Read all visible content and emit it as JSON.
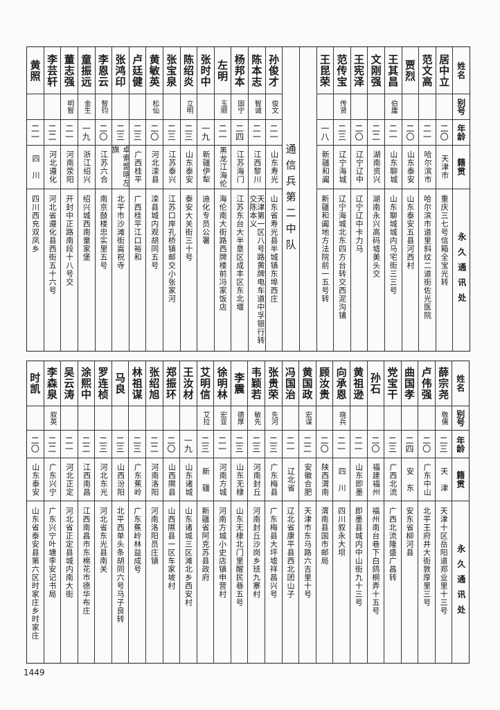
{
  "headers": [
    "姓名",
    "别号",
    "年龄",
    "籍贯",
    "永久通讯处"
  ],
  "top": {
    "group_a": [
      {
        "name": "居中立",
        "alias": "",
        "age": "二〇",
        "origin": "天津市",
        "address": "重庆三七号信箱全宝光转"
      },
      {
        "name": "范文高",
        "alias": "",
        "age": "二一",
        "origin": "哈尔滨市",
        "address": "哈尔滨市道里斜纹二道街佐光医院"
      },
      {
        "name": "贾烈",
        "alias": "",
        "age": "二〇",
        "origin": "山东泰安",
        "address": "山东泰安五县河西村"
      },
      {
        "name": "王其昌",
        "alias": "伯庸",
        "age": "二一",
        "origin": "山东聊城",
        "address": "山东聊城城内马宅街三三号"
      },
      {
        "name": "文刚强",
        "alias": "",
        "age": "二二",
        "origin": "湖南资兴",
        "address": "湖南永兴高码墟美头交"
      },
      {
        "name": "王宪泽",
        "alias": "",
        "age": "二〇",
        "origin": "辽宁辽中",
        "address": "辽宁辽中卡力马"
      },
      {
        "name": "范传宝",
        "alias": "传贤",
        "age": "二三",
        "origin": "辽宁海城",
        "address": "辽宁海城北东四方台转交西泥沟铺"
      },
      {
        "name": "王昆荣",
        "alias": "",
        "age": "一八",
        "origin": "新疆和阗",
        "address": "新疆和阗地方法院前一五号转"
      }
    ],
    "section_label": "通信兵第二中队",
    "group_b": [
      {
        "name": "孙俊才",
        "alias": "俊文",
        "age": "二一",
        "origin": "山东寿光",
        "address": "山东省寿光县半城镇东埠西庄"
      },
      {
        "name": "陈本志",
        "alias": "智诚",
        "age": "二一",
        "origin": "江西黎川",
        "address": "天津第一区八号路黄牌电车道中孚银行转交陈本义"
      },
      {
        "name": "杨邦本",
        "alias": "固宁",
        "age": "二四",
        "origin": "江苏海门",
        "address": "江苏东台大半垦区成丰区东北堰"
      },
      {
        "name": "左明",
        "alias": "玉顺",
        "age": "二一",
        "origin": "黑龙江海伦",
        "address": "海伦南大街路西牌楼前冯家饭店"
      },
      {
        "name": "张时中",
        "alias": "",
        "age": "一九",
        "origin": "新疆伊犁",
        "address": "迪化专员公署"
      },
      {
        "name": "陈绍炎",
        "alias": "立明",
        "age": "二三",
        "origin": "山东泰安",
        "address": "泰安大关街三十号"
      },
      {
        "name": "张宝泉",
        "alias": "",
        "age": "二三",
        "origin": "江苏泰兴",
        "address": "江苏口岸孔桥镇邮交小张家河"
      },
      {
        "name": "黄敏英",
        "alias": "松仙",
        "age": "二〇",
        "origin": "河北滦县",
        "address": "滦县城内观胡同五号"
      },
      {
        "name": "卢廷健",
        "alias": "",
        "age": "二三",
        "origin": "广西桂平",
        "address": "广西桂平江口裕和"
      },
      {
        "name": "张鸿印",
        "alias": "",
        "age": "二三",
        "origin": "卓索盟喀左旗",
        "address": "北平市沙滩街嵩祝寺"
      },
      {
        "name": "李恩云",
        "alias": "智钧",
        "age": "二〇",
        "origin": "江苏六合",
        "address": "南京鼓楼忠实里五号"
      },
      {
        "name": "童振远",
        "alias": "金生",
        "age": "一九",
        "origin": "浙江绍兴",
        "address": "绍兴城西南童家堡"
      },
      {
        "name": "董志强",
        "alias": "明智",
        "age": "二一",
        "origin": "河南荥阳",
        "address": "开封中正路南段十八号交"
      },
      {
        "name": "李芸轩",
        "alias": "",
        "age": "二二",
        "origin": "河北遵化",
        "address": "河北省遵化县西街五十六号"
      },
      {
        "name": "黄照",
        "alias": "",
        "age": "二一",
        "origin": "四　川",
        "address": "四川西充双凤乡"
      }
    ]
  },
  "bottom": [
    {
      "name": "薛宗尧",
      "alias": "敬儒",
      "age": "二三",
      "origin": "天　津",
      "address": "天津十区岳阳道郑业里十三号"
    },
    {
      "name": "卢伟强",
      "alias": "",
      "age": "二〇",
      "origin": "广东中山",
      "address": "北平王府井大街敦厚里三号"
    },
    {
      "name": "曲国孝",
      "alias": "",
      "age": "二四",
      "origin": "安　东",
      "address": "安东省柳河县"
    },
    {
      "name": "党宝干",
      "alias": "",
      "age": "二三",
      "origin": "广西北流",
      "address": "广西北流隆盛广昌转"
    },
    {
      "name": "孙石",
      "alias": "",
      "age": "二〇",
      "origin": "福建福州",
      "address": "福州南台巷下白鸽桐弄十五号"
    },
    {
      "name": "黄祖逊",
      "alias": "",
      "age": "二一",
      "origin": "山东即墨",
      "address": "即墨县城内中山街九十三号"
    },
    {
      "name": "向承恩",
      "alias": "晓兵",
      "age": "二一",
      "origin": "四　川",
      "address": "四川叙永大坝"
    },
    {
      "name": "顾汝贵",
      "alias": "",
      "age": "二〇",
      "origin": "陕西渭南",
      "address": "渭南县国市邮局"
    },
    {
      "name": "黄国政",
      "alias": "宏谋",
      "age": "二二",
      "origin": "安徽合肥",
      "address": "天津市东马路六吉里十号"
    },
    {
      "name": "冯国治",
      "alias": "",
      "age": "二一",
      "origin": "辽北省",
      "address": "辽北省康平县西北团山子"
    },
    {
      "name": "张贵荣",
      "alias": "先河",
      "age": "二三",
      "origin": "广东梅县",
      "address": "广东梅县大坪墟祥昌兴号"
    },
    {
      "name": "韦颖若",
      "alias": "敏先",
      "age": "二三",
      "origin": "河南封丘",
      "address": "河南封丘沙岗乡班九寨村"
    },
    {
      "name": "李震",
      "alias": "德厚",
      "age": "二三",
      "origin": "山东无棣",
      "address": "山东无棣北门里醒民巷五号"
    },
    {
      "name": "徐明林",
      "alias": "宏亚",
      "age": "二一",
      "origin": "河南方城",
      "address": "河南方城小史店镇申营村"
    },
    {
      "name": "艾明信",
      "alias": "艾拉",
      "age": "二三",
      "origin": "新　疆",
      "address": "新疆省阿克苏县政府"
    },
    {
      "name": "王汝材",
      "alias": "",
      "age": "一九",
      "origin": "山东诸城",
      "address": "山东诸城三区滩北乡西安村"
    },
    {
      "name": "郑振环",
      "alias": "",
      "age": "二〇",
      "origin": "山西隰县",
      "address": "山西隰县一区车家坡村"
    },
    {
      "name": "张绍旭",
      "alias": "",
      "age": "二二",
      "origin": "河南洛阳",
      "address": "河南洛阳员庄镇"
    },
    {
      "name": "林祖谋",
      "alias": "",
      "age": "二三",
      "origin": "广东蕉岭",
      "address": "广东蕉岭林益成号"
    },
    {
      "name": "马良",
      "alias": "",
      "age": "二三",
      "origin": "山西汾阳",
      "address": "北平西单头条胡同六号马子良转"
    },
    {
      "name": "罗连桢",
      "alias": "",
      "age": "二三",
      "origin": "河北东光",
      "address": "河北省东光县南关"
    },
    {
      "name": "涂熙中",
      "alias": "",
      "age": "二二",
      "origin": "江西南昌",
      "address": "江西南昌市东棉花市德华布庄"
    },
    {
      "name": "吴云涛",
      "alias": "",
      "age": "二一",
      "origin": "河北正定",
      "address": "河北省正定县城内南大街"
    },
    {
      "name": "李森泉",
      "alias": "叙英",
      "age": "二二",
      "origin": "广东兴宁",
      "address": "广东兴宁叶塘李安记书局"
    },
    {
      "name": "时凯",
      "alias": "",
      "age": "二〇",
      "origin": "山东泰安",
      "address": "山东省泰安县第六区时家庄乡时家庄"
    }
  ],
  "page_number": "1449"
}
